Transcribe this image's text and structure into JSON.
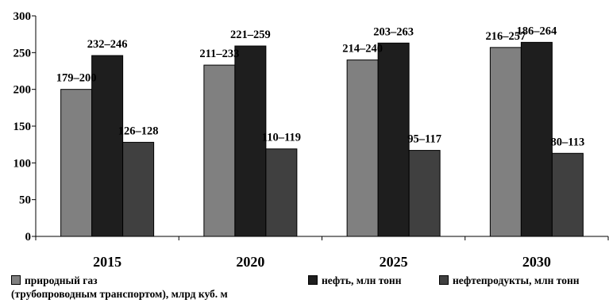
{
  "chart_data": {
    "type": "bar",
    "categories": [
      "2015",
      "2020",
      "2025",
      "2030"
    ],
    "series": [
      {
        "name": "природный газ (трубопроводным транспортом), млрд куб. м",
        "color": "#808080",
        "values": [
          200,
          233,
          240,
          257
        ],
        "labels": [
          "179–200",
          "211–233",
          "214–240",
          "216–257"
        ]
      },
      {
        "name": "нефть, млн тонн",
        "color": "#1e1e1e",
        "values": [
          246,
          259,
          263,
          264
        ],
        "labels": [
          "232–246",
          "221–259",
          "203–263",
          "186–264"
        ]
      },
      {
        "name": "нефтепродукты, млн тонн",
        "color": "#404040",
        "values": [
          128,
          119,
          117,
          113
        ],
        "labels": [
          "126–128",
          "110–119",
          "95–117",
          "80–113"
        ]
      }
    ],
    "ylim": [
      0,
      300
    ],
    "yticks": [
      0,
      50,
      100,
      150,
      200,
      250,
      300
    ],
    "grid": false,
    "legend_position": "bottom"
  },
  "legend": {
    "gas_line1": "природный газ",
    "gas_line2": "(трубопроводным транспортом), млрд куб. м",
    "oil": "нефть, млн тонн",
    "products": "нефтепродукты, млн тонн"
  }
}
